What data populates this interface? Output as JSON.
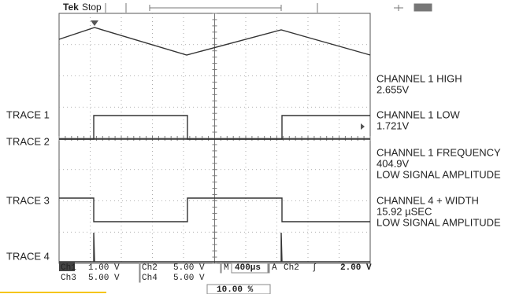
{
  "header": {
    "brand": "Tek",
    "status": "Stop"
  },
  "trace_labels": [
    "TRACE 1",
    "TRACE 2",
    "TRACE 3",
    "TRACE 4"
  ],
  "measurements": [
    [
      "CHANNEL 1 HIGH",
      "2.655V"
    ],
    [
      "CHANNEL 1 LOW",
      "1.721V"
    ],
    [
      "CHANNEL 1 FREQUENCY",
      "404.9V",
      "LOW SIGNAL AMPLITUDE"
    ],
    [
      "CHANNEL 4 + WIDTH",
      "15.92 µSEC",
      "LOW SIGNAL AMPLITUDE"
    ]
  ],
  "readouts": {
    "row1": [
      "Ch1",
      "1.00 V",
      "Ch2",
      "5.00 V",
      "M",
      "400µs",
      "A",
      "Ch2",
      "ʃ",
      "2.00 V"
    ],
    "row2": [
      "Ch3",
      "5.00 V",
      "Ch4",
      "5.00 V"
    ],
    "trigger_position": "10.00 %"
  }
}
